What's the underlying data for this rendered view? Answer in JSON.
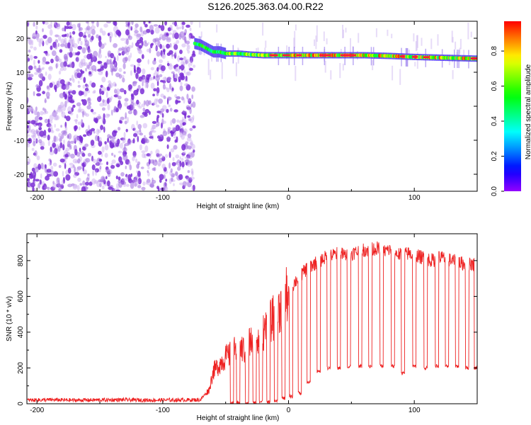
{
  "title": "S126.2025.363.04.00.R22",
  "colors": {
    "snr_line": "#ee2222",
    "scatter_dark": "#7b2fd6",
    "scatter_light": "#c7a6ef"
  },
  "chart_data": [
    {
      "type": "heatmap",
      "title": "S126.2025.363.04.00.R22",
      "xlabel": "Height of straight line (km)",
      "ylabel": "Frequency (Hz)",
      "xlim": [
        -208,
        150
      ],
      "ylim": [
        -25,
        25
      ],
      "xticks": [
        -200,
        -100,
        0,
        100
      ],
      "xtick_labels": [
        "-200",
        "-100",
        "0",
        "100"
      ],
      "yticks": [
        -20,
        -10,
        0,
        10,
        20
      ],
      "ytick_labels": [
        "-20",
        "-10",
        "0",
        "10",
        "20"
      ],
      "noise_region_x": [
        -208,
        -75
      ],
      "carrier_track": {
        "x": [
          -75,
          -70,
          -65,
          -60,
          -55,
          -50,
          -40,
          -30,
          -20,
          -10,
          0,
          20,
          40,
          60,
          80,
          100,
          120,
          150
        ],
        "freq": [
          18.5,
          18.0,
          17.0,
          16.0,
          16.0,
          15.5,
          15.5,
          15.2,
          15.0,
          15.0,
          15.0,
          15.0,
          15.0,
          15.0,
          14.8,
          14.5,
          14.3,
          14.0
        ]
      },
      "colorbar": {
        "label": "Normalized spectral amplitude",
        "range": [
          0,
          0.97
        ],
        "ticks": [
          0.0,
          0.2,
          0.4,
          0.6,
          0.8
        ],
        "tick_labels": [
          "0.0",
          "0.2",
          "0.4",
          "0.6",
          "0.8"
        ]
      }
    },
    {
      "type": "line",
      "xlabel": "Height of straight line (km)",
      "ylabel": "SNR (10 * v/v)",
      "xlim": [
        -208,
        150
      ],
      "ylim": [
        0,
        950
      ],
      "xticks": [
        -200,
        -100,
        0,
        100
      ],
      "xtick_labels": [
        "-200",
        "-100",
        "0",
        "100"
      ],
      "yticks": [
        0,
        200,
        400,
        600,
        800
      ],
      "ytick_labels": [
        "0",
        "200",
        "400",
        "600",
        "800"
      ],
      "series": [
        {
          "name": "SNR",
          "x": [
            -208,
            -190,
            -170,
            -150,
            -130,
            -110,
            -90,
            -70,
            -63,
            -60,
            -55,
            -50,
            -45,
            -40,
            -35,
            -30,
            -25,
            -20,
            -15,
            -10,
            -5,
            0,
            5,
            10,
            15,
            20,
            25,
            30,
            35,
            40,
            45,
            50,
            55,
            60,
            65,
            70,
            75,
            80,
            85,
            90,
            95,
            100,
            105,
            110,
            115,
            120,
            125,
            130,
            135,
            140,
            145,
            150
          ],
          "y": [
            20,
            22,
            20,
            21,
            22,
            20,
            21,
            22,
            80,
            180,
            220,
            260,
            280,
            320,
            300,
            350,
            380,
            400,
            450,
            500,
            560,
            620,
            680,
            720,
            760,
            780,
            800,
            820,
            830,
            840,
            830,
            840,
            850,
            860,
            860,
            870,
            850,
            860,
            840,
            830,
            840,
            830,
            820,
            810,
            800,
            820,
            810,
            800,
            790,
            780,
            780,
            780
          ]
        }
      ],
      "dropouts": {
        "x": [
          -45,
          -40,
          -33,
          -27,
          -22,
          -16,
          -10,
          -4,
          2,
          9,
          16,
          24,
          32,
          40,
          48,
          57,
          65,
          74,
          83,
          91,
          100,
          109,
          118,
          126,
          134,
          142,
          149
        ],
        "y": [
          5,
          5,
          5,
          5,
          10,
          10,
          20,
          30,
          40,
          60,
          120,
          180,
          200,
          200,
          210,
          210,
          210,
          210,
          210,
          170,
          210,
          200,
          210,
          210,
          210,
          200,
          200
        ]
      }
    }
  ]
}
